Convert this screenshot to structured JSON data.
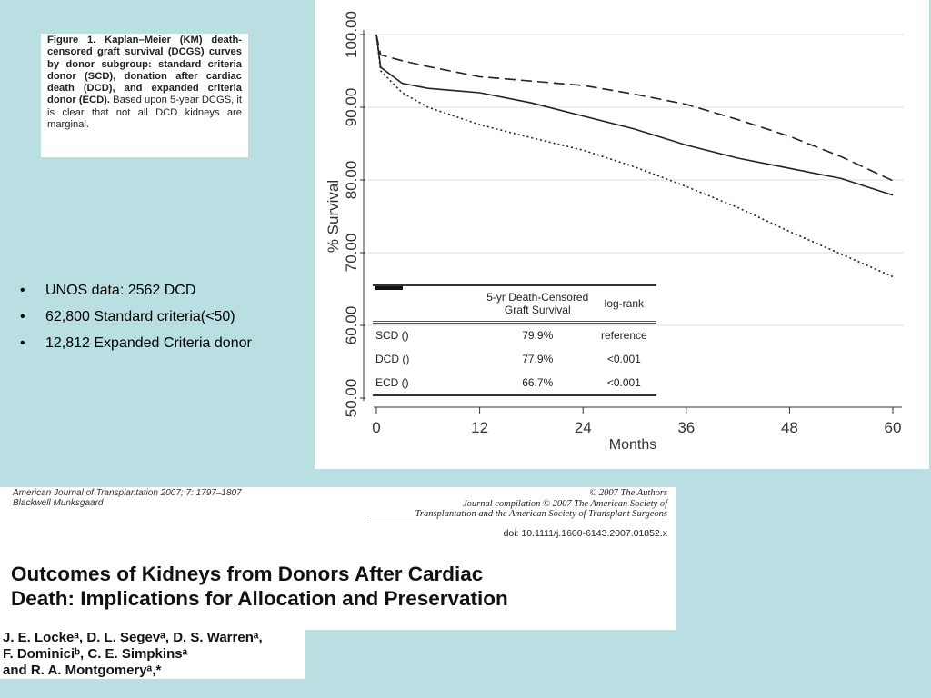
{
  "caption": {
    "bold": "Figure 1. Kaplan–Meier (KM) death-censored graft survival (DCGS) curves by donor subgroup: standard criteria donor (SCD), donation after cardiac death (DCD), and expanded criteria donor (ECD).",
    "normal": "Based upon 5-year DCGS, it is clear that not all DCD kidneys are marginal."
  },
  "bullets": [
    "UNOS data: 2562 DCD",
    "62,800 Standard criteria(<50)",
    "12,812 Expanded Criteria donor"
  ],
  "chart_data": {
    "type": "line",
    "xlabel": "Months",
    "ylabel": "% Survival",
    "xlim": [
      0,
      60
    ],
    "ylim": [
      50,
      100
    ],
    "xticks": [
      "0",
      "12",
      "24",
      "36",
      "48",
      "60"
    ],
    "yticks": [
      "50.00",
      "60.00",
      "70.00",
      "80.00",
      "90.00",
      "100.00"
    ],
    "grid": "horizontal",
    "series": [
      {
        "name": "SCD",
        "style": "dashed",
        "x": [
          0,
          0.5,
          3,
          6,
          12,
          18,
          24,
          30,
          36,
          42,
          48,
          54,
          60
        ],
        "y": [
          100,
          97.2,
          96.4,
          95.6,
          94.2,
          93.6,
          93.0,
          91.8,
          90.4,
          88.3,
          86.0,
          83.2,
          79.9
        ]
      },
      {
        "name": "DCD",
        "style": "solid",
        "x": [
          0,
          0.5,
          3,
          6,
          12,
          18,
          24,
          30,
          36,
          42,
          48,
          54,
          60
        ],
        "y": [
          100,
          95.5,
          93.3,
          92.6,
          92.0,
          90.6,
          88.8,
          87.0,
          84.8,
          83.0,
          81.6,
          80.2,
          77.9
        ]
      },
      {
        "name": "ECD",
        "style": "dotted",
        "x": [
          0,
          0.5,
          3,
          6,
          12,
          18,
          24,
          30,
          36,
          42,
          48,
          54,
          60
        ],
        "y": [
          100,
          95.0,
          92.0,
          90.0,
          87.6,
          85.8,
          84.1,
          81.8,
          79.1,
          76.2,
          72.9,
          69.8,
          66.7
        ]
      }
    ],
    "legend_table": {
      "headers": [
        "",
        "5-yr Death-Censored Graft Survival",
        "log-rank"
      ],
      "rows": [
        {
          "label": "SCD (",
          "suffix": ")",
          "survival": "79.9%",
          "logrank": "reference"
        },
        {
          "label": "DCD (",
          "suffix": ")",
          "survival": "77.9%",
          "logrank": "<0.001"
        },
        {
          "label": "ECD (",
          "suffix": ")",
          "survival": "66.7%",
          "logrank": "<0.001"
        }
      ]
    }
  },
  "paper": {
    "journal": "American Journal of Transplantation 2007; 7: 1797–1807",
    "publisher": "Blackwell Munksgaard",
    "copyright1": "© 2007 The Authors",
    "copyright2": "Journal compilation © 2007 The American Society of",
    "copyright3": "Transplantation and the American Society of Transplant Surgeons",
    "doi": "doi: 10.1111/j.1600-6143.2007.01852.x",
    "title1": "Outcomes of Kidneys from Donors After Cardiac",
    "title2": "Death: Implications for Allocation and Preservation",
    "authors1": "J. E. Lockeᵃ, D. L. Segevᵃ, D. S. Warrenᵃ,",
    "authors2": "F. Dominiciᵇ, C. E. Simpkinsᵃ",
    "authors3": "and R. A. Montgomeryᵃ,*"
  }
}
